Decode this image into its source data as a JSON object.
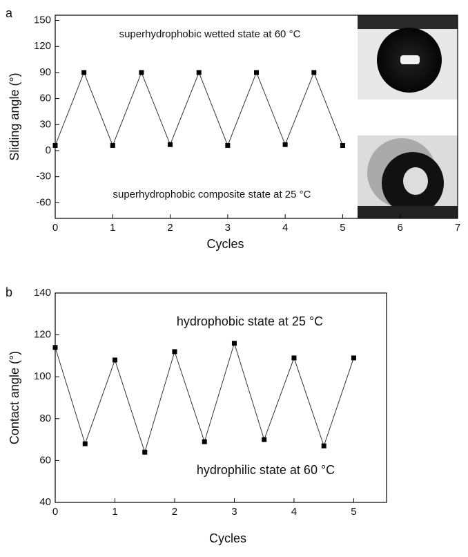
{
  "chart_data": [
    {
      "type": "line",
      "panel_label": "a",
      "x_label": "Cycles",
      "y_label": "Sliding angle (°)",
      "x": [
        0,
        0.5,
        1,
        1.5,
        2,
        2.5,
        3,
        3.5,
        4,
        4.5,
        5
      ],
      "series": [
        {
          "color": "#000000",
          "values": [
            6,
            90,
            6,
            90,
            7,
            90,
            6,
            90,
            7,
            90,
            6
          ]
        }
      ],
      "xlim": [
        0,
        7
      ],
      "xticks": [
        0,
        1,
        2,
        3,
        4,
        5,
        6,
        7
      ],
      "ylim": [
        -78,
        156
      ],
      "yticks": [
        -60,
        -30,
        0,
        30,
        60,
        90,
        120,
        150
      ],
      "annotations": [
        "superhydrophobic wetted state at 60 °C",
        "superhydrophobic composite state at 25 °C"
      ]
    },
    {
      "type": "line",
      "panel_label": "b",
      "x_label": "Cycles",
      "y_label": "Contact angle (°)",
      "x": [
        0,
        0.5,
        1,
        1.5,
        2,
        2.5,
        3,
        3.5,
        4,
        4.5,
        5
      ],
      "series": [
        {
          "color": "#000000",
          "values": [
            114,
            68,
            108,
            64,
            112,
            69,
            116,
            70,
            109,
            67,
            109
          ]
        }
      ],
      "xlim": [
        0,
        5.55
      ],
      "xticks": [
        0,
        1,
        2,
        3,
        4,
        5
      ],
      "ylim": [
        40,
        140
      ],
      "yticks": [
        40,
        60,
        80,
        100,
        120,
        140
      ],
      "annotations": [
        "hydrophobic state at 25 °C",
        "hydrophilic state at 60 °C"
      ]
    }
  ]
}
